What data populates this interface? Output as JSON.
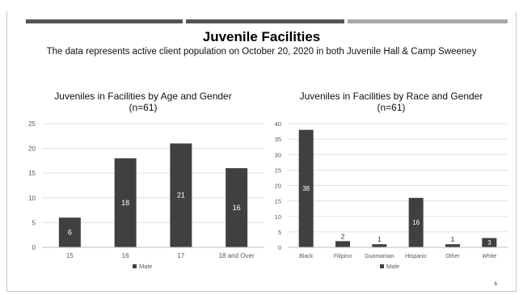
{
  "slide": {
    "title": "Juvenile Facilities",
    "subtitle": "The data represents active client population on October 20, 2020 in both Juvenile Hall & Camp Sweeney",
    "page_number": "6",
    "accent_bars": [
      "#555555",
      "#555555",
      "#a8a8a8"
    ],
    "bar_color": "#404040"
  },
  "chart_data": [
    {
      "type": "bar",
      "title_line1": "Juveniles in Facilities by Age and Gender",
      "title_line2": "(n=61)",
      "categories": [
        "15",
        "16",
        "17",
        "18 and Over"
      ],
      "series": [
        {
          "name": "Male",
          "values": [
            6,
            18,
            21,
            16
          ]
        }
      ],
      "yticks": [
        "0",
        "5",
        "10",
        "15",
        "20",
        "25"
      ],
      "ylim": [
        0,
        25
      ],
      "grid": true,
      "legend": "bottom"
    },
    {
      "type": "bar",
      "title_line1": "Juveniles in Facilities by Race and Gender",
      "title_line2": "(n=61)",
      "categories": [
        "Black",
        "Filipino",
        "Guamanian",
        "Hispanic",
        "Other",
        "White"
      ],
      "series": [
        {
          "name": "Male",
          "values": [
            38,
            2,
            1,
            16,
            1,
            3
          ]
        }
      ],
      "yticks": [
        "0",
        "5",
        "10",
        "15",
        "20",
        "25",
        "30",
        "35",
        "40"
      ],
      "ylim": [
        0,
        40
      ],
      "grid": true,
      "legend": "bottom"
    }
  ]
}
